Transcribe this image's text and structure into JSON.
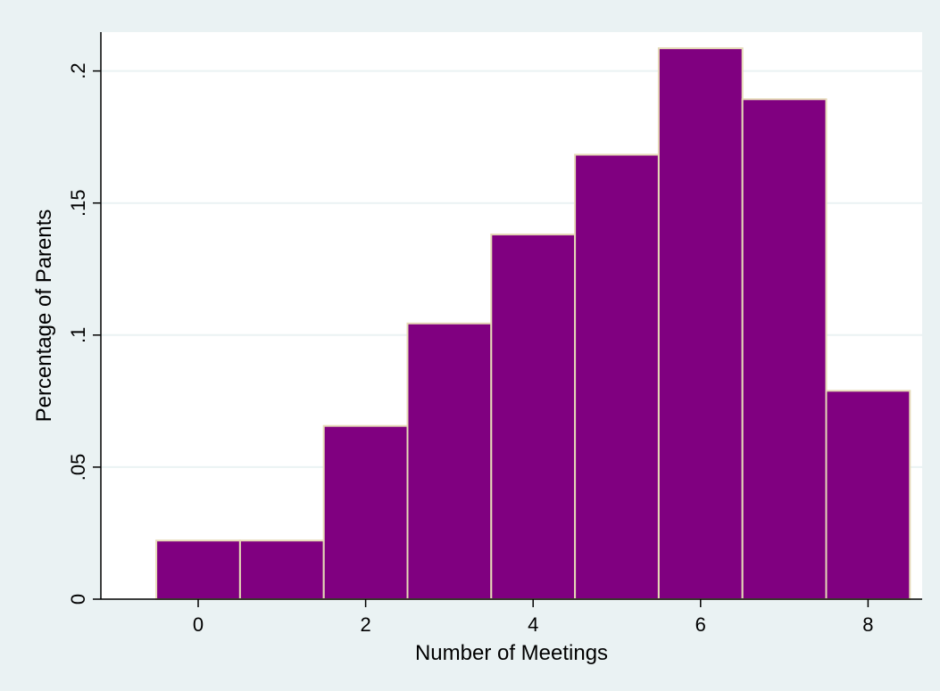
{
  "chart_data": {
    "type": "bar",
    "subtype": "histogram",
    "title": "",
    "xlabel": "Number of Meetings",
    "ylabel": "Percentage of Parents",
    "x": [
      0,
      1,
      2,
      3,
      4,
      5,
      6,
      7,
      8
    ],
    "values": [
      0.0222,
      0.0222,
      0.0656,
      0.1044,
      0.1381,
      0.1683,
      0.2086,
      0.1893,
      0.0789
    ],
    "xlim": [
      -1.2,
      8.5
    ],
    "ylim": [
      0,
      0.215
    ],
    "x_ticks": [
      0,
      2,
      4,
      6,
      8
    ],
    "x_tick_labels": [
      "0",
      "2",
      "4",
      "6",
      "8"
    ],
    "y_ticks": [
      0,
      0.05,
      0.1,
      0.15,
      0.2
    ],
    "y_tick_labels": [
      "0",
      ".05",
      ".1",
      ".15",
      ".2"
    ],
    "grid": "horizontal",
    "legend": "none",
    "colors": {
      "bar_fill": "#800080",
      "bar_edge": "#e5d9b6",
      "plot_bg": "#ffffff",
      "page_bg": "#eaf2f3",
      "grid": "#eaf2f3"
    }
  }
}
